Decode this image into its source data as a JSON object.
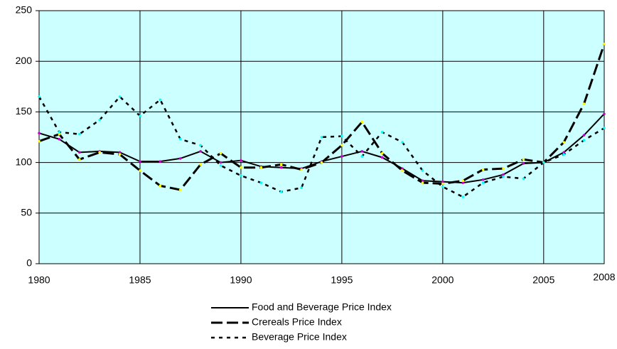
{
  "chart_data": {
    "type": "line",
    "x": [
      1980,
      1981,
      1982,
      1983,
      1984,
      1985,
      1986,
      1987,
      1988,
      1989,
      1990,
      1991,
      1992,
      1993,
      1994,
      1995,
      1996,
      1997,
      1998,
      1999,
      2000,
      2001,
      2002,
      2003,
      2004,
      2005,
      2006,
      2007,
      2008
    ],
    "series": [
      {
        "name": "Food and Beverage Price Index",
        "color": "#000000",
        "marker_color": "#cc00cc",
        "dash": "solid",
        "values": [
          129,
          123,
          110,
          111,
          110,
          101,
          101,
          104,
          111,
          100,
          102,
          96,
          95,
          94,
          101,
          106,
          111,
          105,
          94,
          82,
          81,
          80,
          83,
          88,
          99,
          100,
          110,
          127,
          148
        ]
      },
      {
        "name": "Crereals Price Index",
        "color": "#000000",
        "marker_color": "#ffff00",
        "dash": "long",
        "values": [
          121,
          128,
          103,
          110,
          108,
          92,
          77,
          73,
          98,
          109,
          95,
          95,
          98,
          93,
          100,
          117,
          140,
          109,
          92,
          80,
          79,
          82,
          93,
          94,
          103,
          100,
          120,
          158,
          217
        ]
      },
      {
        "name": "Beverage Price Index",
        "color": "#000000",
        "marker_color": "#00ffff",
        "dash": "short",
        "values": [
          165,
          130,
          128,
          142,
          165,
          146,
          162,
          123,
          117,
          97,
          87,
          80,
          71,
          75,
          125,
          126,
          106,
          130,
          120,
          92,
          76,
          66,
          80,
          86,
          84,
          100,
          108,
          122,
          134
        ]
      }
    ],
    "xlim": [
      1980,
      2008
    ],
    "xticks": [
      1980,
      1985,
      1990,
      1995,
      2000,
      2005,
      2008
    ],
    "ylim": [
      0,
      250
    ],
    "yticks": [
      0,
      50,
      100,
      150,
      200,
      250
    ],
    "grid": true,
    "background": "#ccffff",
    "legend": "bottom"
  }
}
